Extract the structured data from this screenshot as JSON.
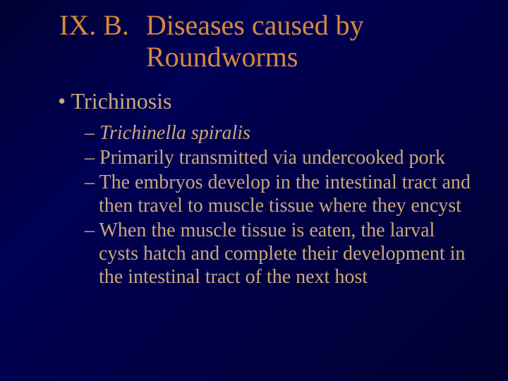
{
  "colors": {
    "background_from": "#000033",
    "background_to": "#000055",
    "title_color": "#d98a3a",
    "body_color": "#c9a978"
  },
  "typography": {
    "title_fontsize_pt": 40,
    "l1_fontsize_pt": 32,
    "l2_fontsize_pt": 28,
    "font_family": "Times New Roman"
  },
  "title": {
    "number": "IX. B.",
    "text": "Diseases caused by Roundworms"
  },
  "bullets": {
    "l1": "Trichinosis",
    "sub": [
      {
        "text": "Trichinella spiralis",
        "italic": true
      },
      {
        "text": "Primarily transmitted via undercooked pork",
        "italic": false
      },
      {
        "text": "The embryos develop in the intestinal tract and then travel to muscle tissue where they encyst",
        "italic": false
      },
      {
        "text": "When the muscle tissue is eaten, the larval cysts hatch and complete their development in the intestinal tract of the next host",
        "italic": false
      }
    ]
  }
}
